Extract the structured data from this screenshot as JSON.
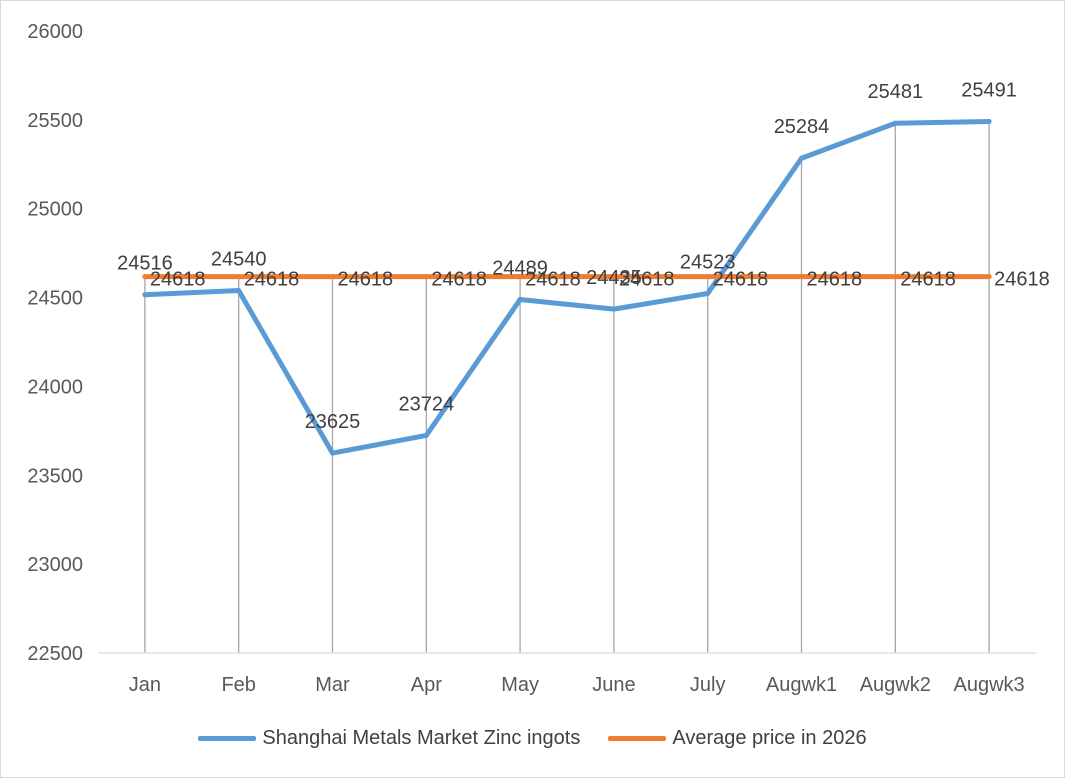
{
  "chart_data": {
    "type": "line",
    "title": "",
    "xlabel": "",
    "ylabel": "",
    "categories": [
      "Jan",
      "Feb",
      "Mar",
      "Apr",
      "May",
      "June",
      "July",
      "Augwk1",
      "Augwk2",
      "Augwk3"
    ],
    "ylim": [
      22500,
      26000
    ],
    "yticks": [
      22500,
      23000,
      23500,
      24000,
      24500,
      25000,
      25500,
      26000
    ],
    "grid": "vertical drop lines at each category",
    "legend_position": "bottom",
    "data_labels": true,
    "series": [
      {
        "name": "Shanghai Metals Market Zinc ingots",
        "color": "#5b9bd5",
        "values": [
          24516,
          24540,
          23625,
          23724,
          24489,
          24435,
          24523,
          25284,
          25481,
          25491
        ]
      },
      {
        "name": "Average price in 2026",
        "color": "#ed7d31",
        "values": [
          24618,
          24618,
          24618,
          24618,
          24618,
          24618,
          24618,
          24618,
          24618,
          24618
        ]
      }
    ]
  }
}
